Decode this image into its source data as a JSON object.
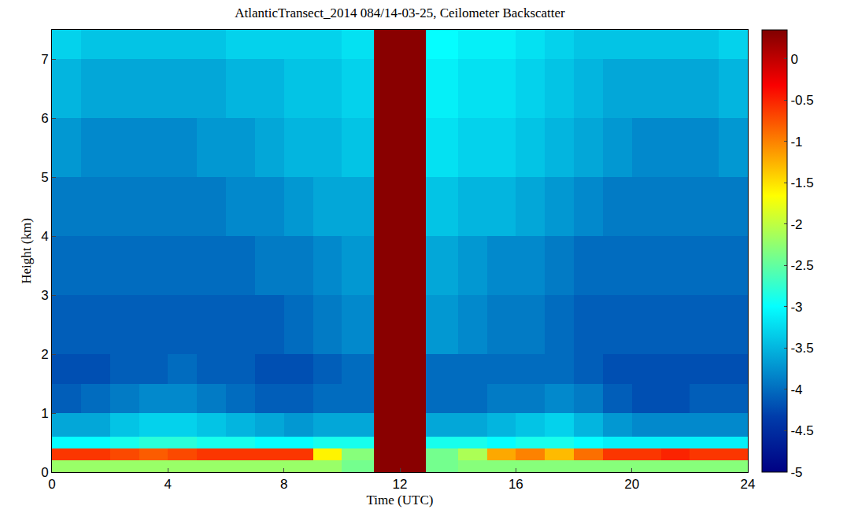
{
  "chart_data": {
    "type": "heatmap",
    "title": "AtlanticTransect_2014 084/14-03-25, Ceilometer Backscatter",
    "x_label": "Time (UTC)",
    "y_label": "Height (km)",
    "xlim": [
      0,
      24
    ],
    "ylim": [
      0,
      7.5
    ],
    "xticks": [
      0,
      4,
      8,
      12,
      16,
      20,
      24
    ],
    "yticks": [
      0,
      1,
      2,
      3,
      4,
      5,
      6,
      7
    ],
    "x_edges": [
      0,
      1,
      2,
      3,
      4,
      5,
      6,
      7,
      8,
      9,
      10,
      11.1,
      12.9,
      14,
      15,
      16,
      17,
      18,
      19,
      20,
      21,
      22,
      23,
      24
    ],
    "y_edges": [
      0,
      0.2,
      0.4,
      0.6,
      1,
      1.5,
      2,
      3,
      4,
      5,
      6,
      7,
      7.5
    ],
    "z": [
      [
        -2.2,
        -2.2,
        -2.2,
        -2.2,
        -2.2,
        -2.2,
        -2.2,
        -2.2,
        -2.2,
        -2.2,
        -2.4,
        0.3,
        -2.4,
        -2.3,
        -2.3,
        -2.3,
        -2.3,
        -2.3,
        -2.3,
        -2.3,
        -2.3,
        -2.3,
        -2.3
      ],
      [
        -0.6,
        -0.6,
        -0.7,
        -0.8,
        -0.7,
        -0.6,
        -0.6,
        -0.6,
        -0.6,
        -1.6,
        -2.3,
        0.3,
        -2.4,
        -2.1,
        -1.2,
        -1.0,
        -1.3,
        -0.9,
        -0.6,
        -0.6,
        -0.5,
        -0.6,
        -0.6
      ],
      [
        -3.0,
        -3.0,
        -2.9,
        -2.8,
        -2.8,
        -2.9,
        -2.9,
        -3.0,
        -3.0,
        -2.9,
        -2.9,
        0.3,
        -2.9,
        -2.9,
        -3.0,
        -2.9,
        -2.9,
        -3.0,
        -3.1,
        -3.1,
        -3.1,
        -3.1,
        -3.1
      ],
      [
        -3.6,
        -3.6,
        -3.4,
        -3.3,
        -3.3,
        -3.4,
        -3.5,
        -3.6,
        -3.7,
        -3.6,
        -3.6,
        0.3,
        -3.6,
        -3.6,
        -3.5,
        -3.4,
        -3.3,
        -3.5,
        -3.7,
        -3.8,
        -3.8,
        -3.8,
        -3.8
      ],
      [
        -4.1,
        -4.0,
        -3.9,
        -3.8,
        -3.8,
        -3.9,
        -4.0,
        -4.1,
        -4.1,
        -4.0,
        -4.0,
        0.3,
        -4.0,
        -4.0,
        -3.9,
        -3.9,
        -3.8,
        -3.9,
        -4.1,
        -4.2,
        -4.2,
        -4.1,
        -4.1
      ],
      [
        -4.2,
        -4.2,
        -4.1,
        -4.1,
        -4.0,
        -4.1,
        -4.1,
        -4.2,
        -4.2,
        -4.1,
        -4.0,
        0.3,
        -4.0,
        -4.0,
        -4.0,
        -4.0,
        -4.0,
        -4.1,
        -4.2,
        -4.2,
        -4.2,
        -4.2,
        -4.2
      ],
      [
        -4.1,
        -4.1,
        -4.1,
        -4.1,
        -4.1,
        -4.1,
        -4.1,
        -4.1,
        -4.0,
        -3.9,
        -3.8,
        0.3,
        -3.7,
        -3.8,
        -3.9,
        -3.9,
        -4.0,
        -4.1,
        -4.1,
        -4.1,
        -4.1,
        -4.1,
        -4.1
      ],
      [
        -4.0,
        -4.0,
        -4.0,
        -4.0,
        -4.0,
        -4.0,
        -4.0,
        -3.9,
        -3.9,
        -3.8,
        -3.7,
        0.3,
        -3.6,
        -3.7,
        -3.8,
        -3.8,
        -3.9,
        -4.0,
        -4.0,
        -4.0,
        -4.0,
        -4.0,
        -4.0
      ],
      [
        -3.9,
        -3.9,
        -3.9,
        -3.9,
        -3.9,
        -3.9,
        -3.8,
        -3.8,
        -3.7,
        -3.6,
        -3.6,
        0.3,
        -3.4,
        -3.5,
        -3.5,
        -3.6,
        -3.7,
        -3.8,
        -3.9,
        -3.9,
        -3.9,
        -3.9,
        -3.9
      ],
      [
        -3.7,
        -3.8,
        -3.8,
        -3.8,
        -3.8,
        -3.7,
        -3.7,
        -3.6,
        -3.5,
        -3.5,
        -3.4,
        0.3,
        -3.2,
        -3.3,
        -3.3,
        -3.4,
        -3.5,
        -3.6,
        -3.7,
        -3.8,
        -3.8,
        -3.8,
        -3.7
      ],
      [
        -3.5,
        -3.6,
        -3.6,
        -3.6,
        -3.6,
        -3.6,
        -3.5,
        -3.5,
        -3.4,
        -3.4,
        -3.3,
        0.3,
        -3.1,
        -3.2,
        -3.2,
        -3.3,
        -3.4,
        -3.5,
        -3.6,
        -3.6,
        -3.6,
        -3.6,
        -3.5
      ],
      [
        -3.3,
        -3.4,
        -3.4,
        -3.4,
        -3.4,
        -3.4,
        -3.3,
        -3.3,
        -3.3,
        -3.3,
        -3.2,
        0.3,
        -3.0,
        -3.1,
        -3.1,
        -3.2,
        -3.3,
        -3.4,
        -3.4,
        -3.4,
        -3.4,
        -3.4,
        -3.3
      ]
    ],
    "colorbar": {
      "range": [
        -5,
        0.35
      ],
      "ticks": [
        0,
        -0.5,
        -1,
        -1.5,
        -2,
        -2.5,
        -3,
        -3.5,
        -4,
        -4.5,
        -5
      ]
    }
  }
}
